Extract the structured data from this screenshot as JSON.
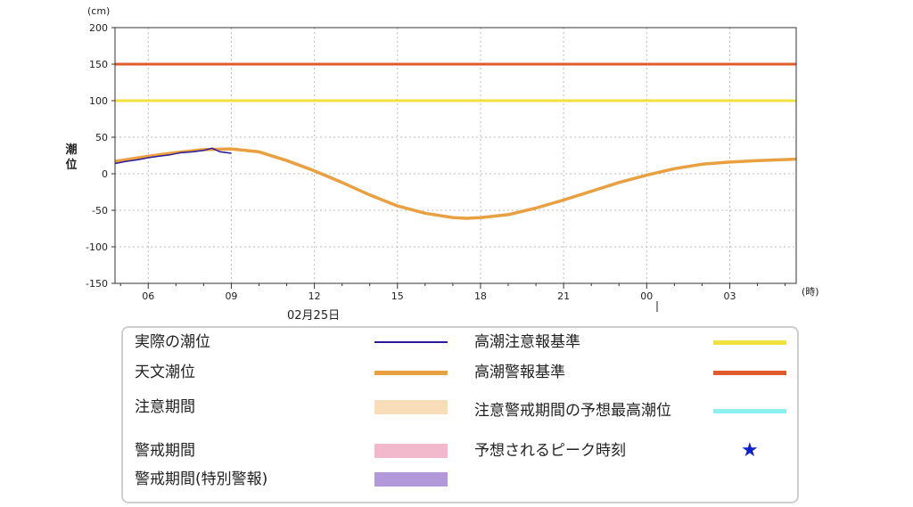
{
  "chart_data": {
    "type": "line",
    "y_unit": "(cm)",
    "x_unit": "(時)",
    "ylabel": "潮位",
    "ylim": [
      -150,
      200
    ],
    "yticks": [
      200,
      150,
      100,
      50,
      0,
      -50,
      -100,
      -150
    ],
    "x_range_hours": [
      4.8,
      29.4
    ],
    "x_tick_hours": [
      6,
      9,
      12,
      15,
      18,
      21,
      24,
      27
    ],
    "x_tick_labels": [
      "06",
      "09",
      "12",
      "15",
      "18",
      "21",
      "00",
      "03"
    ],
    "date_label": "02月25日",
    "grid": true,
    "series": [
      {
        "name": "実際の潮位",
        "color": "#2a1a9e",
        "x": [
          4.8,
          5.2,
          5.6,
          6.0,
          6.4,
          6.8,
          7.2,
          7.6,
          8.0,
          8.3,
          8.6,
          9.0
        ],
        "y": [
          14,
          17,
          19,
          22,
          24,
          26,
          29,
          30,
          32,
          35,
          30,
          28
        ]
      },
      {
        "name": "天文潮位",
        "color": "#e8a040",
        "x": [
          4.8,
          6.0,
          7.0,
          8.0,
          9.0,
          10.0,
          11.0,
          12.0,
          13.0,
          14.0,
          15.0,
          16.0,
          17.0,
          17.5,
          18.0,
          19.0,
          20.0,
          21.0,
          22.0,
          23.0,
          24.0,
          25.0,
          26.0,
          27.0,
          28.0,
          29.4
        ],
        "y": [
          17,
          24,
          29,
          33,
          34,
          30,
          18,
          4,
          -12,
          -29,
          -44,
          -54,
          -60,
          -61,
          -60,
          -56,
          -47,
          -36,
          -24,
          -12,
          -2,
          7,
          13,
          16,
          18,
          20
        ]
      }
    ],
    "reference_lines": [
      {
        "name": "高潮注意報基準",
        "value": 100,
        "color": "#f0e040"
      },
      {
        "name": "高潮警報基準",
        "value": 150,
        "color": "#e05a2a"
      }
    ]
  },
  "legend": {
    "items": [
      {
        "label": "実際の潮位",
        "color": "#2a1a9e",
        "kind": "line"
      },
      {
        "label": "天文潮位",
        "color": "#e8a040",
        "kind": "thick"
      },
      {
        "label": "注意期間",
        "color": "#f8ddb8",
        "kind": "box"
      },
      {
        "label": "警戒期間",
        "color": "#f2b8cc",
        "kind": "box"
      },
      {
        "label": "警戒期間(特別警報)",
        "color": "#b29ada",
        "kind": "box"
      },
      {
        "label": "高潮注意報基準",
        "color": "#f0e040",
        "kind": "thick"
      },
      {
        "label": "高潮警報基準",
        "color": "#e05a2a",
        "kind": "thick"
      },
      {
        "label": "注意警戒期間の予想最高潮位",
        "color": "#8cf0f0",
        "kind": "thick"
      },
      {
        "label": "予想されるピーク時刻",
        "color": "#1020d0",
        "kind": "star"
      }
    ]
  }
}
